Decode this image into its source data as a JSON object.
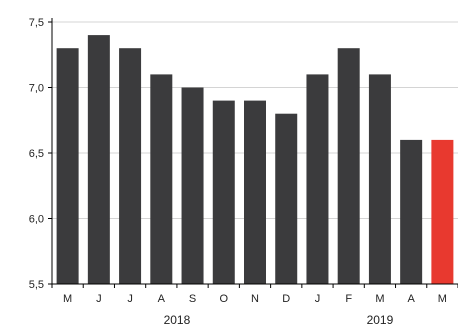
{
  "chart_data": {
    "type": "bar",
    "categories": [
      "M",
      "J",
      "J",
      "A",
      "S",
      "O",
      "N",
      "D",
      "J",
      "F",
      "M",
      "A",
      "M"
    ],
    "values": [
      7.3,
      7.4,
      7.3,
      7.1,
      7.0,
      6.9,
      6.9,
      6.8,
      7.1,
      7.3,
      7.1,
      6.6,
      6.6
    ],
    "year_labels": [
      {
        "label": "2018",
        "category_index": 3.5
      },
      {
        "label": "2019",
        "category_index": 10.0
      }
    ],
    "yticks": [
      "5,5",
      "6,0",
      "6,5",
      "7,0",
      "7,5"
    ],
    "ytick_values": [
      5.5,
      6.0,
      6.5,
      7.0,
      7.5
    ],
    "ylim": [
      5.5,
      7.5
    ],
    "grid": true,
    "colors": {
      "bar": "#3b3b3d",
      "highlight": "#e8392f",
      "grid": "#d4d4d4",
      "axis": "#000000",
      "text": "#222222"
    },
    "highlight_index": 12
  }
}
